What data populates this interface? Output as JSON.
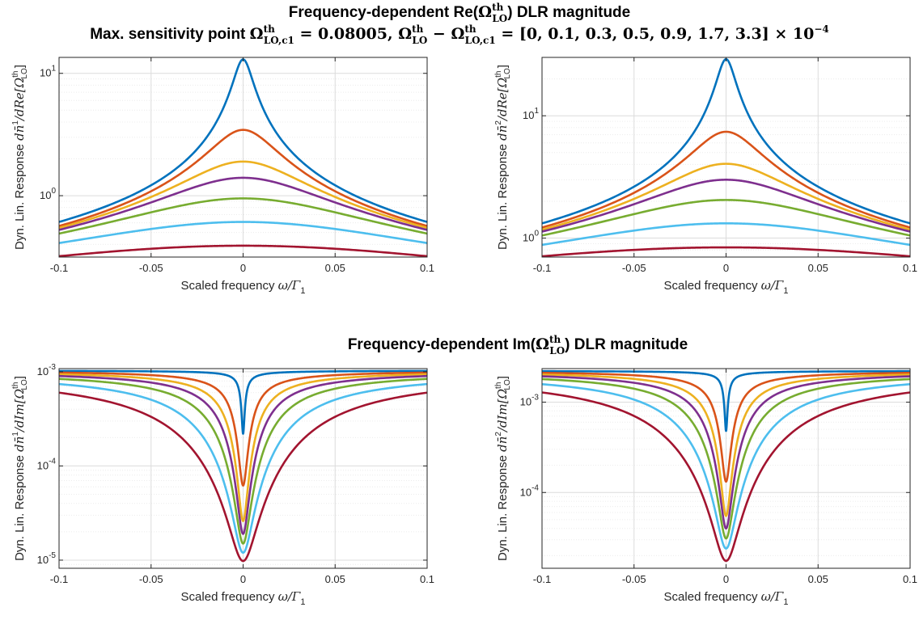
{
  "figure": {
    "title_re": {
      "prefix": "Frequency-dependent Re(",
      "sym": "Ω",
      "sup": "th",
      "sub": "LO",
      "suffix": ") DLR magnitude"
    },
    "title_im": {
      "prefix": "Frequency-dependent Im(",
      "sym": "Ω",
      "sup": "th",
      "sub": "LO",
      "suffix": ") DLR magnitude"
    },
    "subtitle": {
      "prefix": "Max. sensitivity point ",
      "sym": "Ω",
      "sup": "th",
      "sub1": "LO,c1",
      "eq_value": " = 0.08005,  ",
      "sub2": "LO",
      "minus": " − ",
      "sub3": "LO,c1",
      "list": " = [0, 0.1, 0.3, 0.5, 0.9, 1.7, 3.3] × 10",
      "exp": "−4"
    },
    "xlabel_text": "Scaled frequency ",
    "xlabel_math": "ω/Γ",
    "xlabel_sub": "1",
    "ylabel_prefix": "Dyn. Lin. Response ",
    "ylabels": [
      {
        "num": "dn̄",
        "sup": "1",
        "den": "/dRe[Ω",
        "den_sup": "th",
        "den_sub": "LO",
        "close": "]"
      },
      {
        "num": "dn̄",
        "sup": "2",
        "den": "/dRe[Ω",
        "den_sup": "th",
        "den_sub": "LO",
        "close": "]"
      },
      {
        "num": "dn̄",
        "sup": "1",
        "den": "/dIm[Ω",
        "den_sup": "th",
        "den_sub": "LO",
        "close": "]"
      },
      {
        "num": "dn̄",
        "sup": "2",
        "den": "/dIm[Ω",
        "den_sup": "th",
        "den_sub": "LO",
        "close": "]"
      }
    ]
  },
  "colors": {
    "series": [
      "#0072BD",
      "#D95319",
      "#EDB120",
      "#7E2F8E",
      "#77AC30",
      "#4DBEEE",
      "#A2142F"
    ],
    "axis": "#262626",
    "grid": "#dcdcdc"
  },
  "chart_data": [
    {
      "type": "line",
      "id": "re1",
      "title": "",
      "xlabel": "Scaled frequency ω/Γ1",
      "ylabel": "Dyn. Lin. Response dn̄¹/dRe[Ω_LO^th]",
      "yscale": "log",
      "xlim": [
        -0.1,
        0.1
      ],
      "ylim": [
        0.315,
        13.5
      ],
      "xticks": [
        -0.1,
        -0.05,
        0,
        0.05,
        0.1
      ],
      "xtick_labels": [
        "-0.1",
        "-0.05",
        "0",
        "0.05",
        "0.1"
      ],
      "yticks": [
        1,
        10
      ],
      "ytick_labels": [
        {
          "base": "10",
          "exp": "0"
        },
        {
          "base": "10",
          "exp": "1"
        }
      ],
      "grid": true,
      "model": "lorentzian_sqrt",
      "series": [
        {
          "name": "0",
          "peak": 13.0,
          "edge": 0.61
        },
        {
          "name": "0.1e-4",
          "peak": 3.45,
          "edge": 0.565
        },
        {
          "name": "0.3e-4",
          "peak": 1.9,
          "edge": 0.545
        },
        {
          "name": "0.5e-4",
          "peak": 1.4,
          "edge": 0.525
        },
        {
          "name": "0.9e-4",
          "peak": 0.95,
          "edge": 0.49
        },
        {
          "name": "1.7e-4",
          "peak": 0.61,
          "edge": 0.41
        },
        {
          "name": "3.3e-4",
          "peak": 0.39,
          "edge": 0.32
        }
      ]
    },
    {
      "type": "line",
      "id": "re2",
      "title": "",
      "xlabel": "Scaled frequency ω/Γ1",
      "ylabel": "Dyn. Lin. Response dn̄²/dRe[Ω_LO^th]",
      "yscale": "log",
      "xlim": [
        -0.1,
        0.1
      ],
      "ylim": [
        0.7,
        30
      ],
      "xticks": [
        -0.1,
        -0.05,
        0,
        0.05,
        0.1
      ],
      "xtick_labels": [
        "-0.1",
        "-0.05",
        "0",
        "0.05",
        "0.1"
      ],
      "yticks": [
        1,
        10
      ],
      "ytick_labels": [
        {
          "base": "10",
          "exp": "0"
        },
        {
          "base": "10",
          "exp": "1"
        }
      ],
      "grid": true,
      "model": "lorentzian_sqrt",
      "series": [
        {
          "name": "0",
          "peak": 29.0,
          "edge": 1.32
        },
        {
          "name": "0.1e-4",
          "peak": 7.4,
          "edge": 1.22
        },
        {
          "name": "0.3e-4",
          "peak": 4.05,
          "edge": 1.17
        },
        {
          "name": "0.5e-4",
          "peak": 3.0,
          "edge": 1.13
        },
        {
          "name": "0.9e-4",
          "peak": 2.05,
          "edge": 1.05
        },
        {
          "name": "1.7e-4",
          "peak": 1.32,
          "edge": 0.88
        },
        {
          "name": "3.3e-4",
          "peak": 0.84,
          "edge": 0.71
        }
      ]
    },
    {
      "type": "line",
      "id": "im1",
      "title": "",
      "xlabel": "Scaled frequency ω/Γ1",
      "ylabel": "Dyn. Lin. Response dn̄¹/dIm[Ω_LO^th]",
      "yscale": "log",
      "xlim": [
        -0.1,
        0.1
      ],
      "ylim": [
        8.2e-06,
        0.00108
      ],
      "xticks": [
        -0.1,
        -0.05,
        0,
        0.05,
        0.1
      ],
      "xtick_labels": [
        "-0.1",
        "-0.05",
        "0",
        "0.05",
        "0.1"
      ],
      "yticks": [
        1e-05,
        0.0001,
        0.001
      ],
      "ytick_labels": [
        {
          "base": "10",
          "exp": "-5"
        },
        {
          "base": "10",
          "exp": "-4"
        },
        {
          "base": "10",
          "exp": "-3"
        }
      ],
      "grid": true,
      "model": "notch",
      "series": [
        {
          "name": "0",
          "center": 0.00022,
          "edge": 0.00102,
          "plateau": 0.00103
        },
        {
          "name": "0.1e-4",
          "center": 6.2e-05,
          "edge": 0.00098,
          "plateau": 0.00104
        },
        {
          "name": "0.3e-4",
          "center": 2.6e-05,
          "edge": 0.00094,
          "plateau": 0.00104
        },
        {
          "name": "0.5e-4",
          "center": 1.9e-05,
          "edge": 0.0009,
          "plateau": 0.00104
        },
        {
          "name": "0.9e-4",
          "center": 1.5e-05,
          "edge": 0.00084,
          "plateau": 0.00104
        },
        {
          "name": "1.7e-4",
          "center": 1.2e-05,
          "edge": 0.00074,
          "plateau": 0.00104
        },
        {
          "name": "3.3e-4",
          "center": 9.8e-06,
          "edge": 0.0006,
          "plateau": 0.00104
        }
      ]
    },
    {
      "type": "line",
      "id": "im2",
      "title": "",
      "xlabel": "Scaled frequency ω/Γ1",
      "ylabel": "Dyn. Lin. Response dn̄²/dIm[Ω_LO^th]",
      "yscale": "log",
      "xlim": [
        -0.1,
        0.1
      ],
      "ylim": [
        1.45e-05,
        0.00235
      ],
      "xticks": [
        -0.1,
        -0.05,
        0,
        0.05,
        0.1
      ],
      "xtick_labels": [
        "-0.1",
        "-0.05",
        "0",
        "0.05",
        "0.1"
      ],
      "yticks": [
        0.0001,
        0.001
      ],
      "ytick_labels": [
        {
          "base": "10",
          "exp": "-4"
        },
        {
          "base": "10",
          "exp": "-3"
        }
      ],
      "grid": true,
      "model": "notch",
      "series": [
        {
          "name": "0",
          "center": 0.00048,
          "edge": 0.0022,
          "plateau": 0.00222
        },
        {
          "name": "0.1e-4",
          "center": 0.000132,
          "edge": 0.00211,
          "plateau": 0.00224
        },
        {
          "name": "0.3e-4",
          "center": 5.5e-05,
          "edge": 0.00202,
          "plateau": 0.00224
        },
        {
          "name": "0.5e-4",
          "center": 4e-05,
          "edge": 0.00193,
          "plateau": 0.00224
        },
        {
          "name": "0.9e-4",
          "center": 3.1e-05,
          "edge": 0.0018,
          "plateau": 0.00224
        },
        {
          "name": "1.7e-4",
          "center": 2.4e-05,
          "edge": 0.00158,
          "plateau": 0.00224
        },
        {
          "name": "3.3e-4",
          "center": 1.75e-05,
          "edge": 0.00128,
          "plateau": 0.00224
        }
      ]
    }
  ]
}
